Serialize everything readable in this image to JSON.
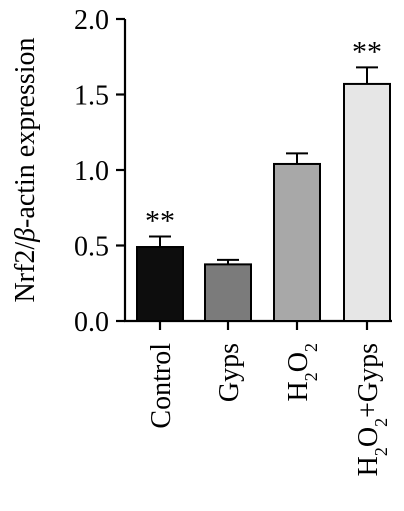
{
  "chart_data": {
    "type": "bar",
    "title": "",
    "xlabel": "",
    "ylabel_parts": [
      "Nrf2/",
      "β",
      "-actin expression"
    ],
    "ylim": [
      0,
      2.0
    ],
    "yticks": [
      "0.0",
      "0.5",
      "1.0",
      "1.5",
      "2.0"
    ],
    "ytick_values": [
      0,
      0.5,
      1.0,
      1.5,
      2.0
    ],
    "categories": [
      "Control",
      "Gyps",
      "H2O2",
      "H2O2+Gyps"
    ],
    "category_labels": [
      [
        {
          "t": "Control",
          "sub": false
        }
      ],
      [
        {
          "t": "Gyps",
          "sub": false
        }
      ],
      [
        {
          "t": "H",
          "sub": false
        },
        {
          "t": "2",
          "sub": true
        },
        {
          "t": "O",
          "sub": false
        },
        {
          "t": "2",
          "sub": true
        }
      ],
      [
        {
          "t": "H",
          "sub": false
        },
        {
          "t": "2",
          "sub": true
        },
        {
          "t": "O",
          "sub": false
        },
        {
          "t": "2",
          "sub": true
        },
        {
          "t": "+Gyps",
          "sub": false
        }
      ]
    ],
    "values": [
      0.49,
      0.375,
      1.04,
      1.57
    ],
    "errors": [
      0.07,
      0.03,
      0.07,
      0.11
    ],
    "significance": [
      "**",
      "",
      "",
      "**"
    ],
    "bar_colors": [
      "#0d0d0d",
      "#7b7b7b",
      "#a8a8a8",
      "#e6e6e6"
    ],
    "grid": false,
    "legend": "none"
  }
}
